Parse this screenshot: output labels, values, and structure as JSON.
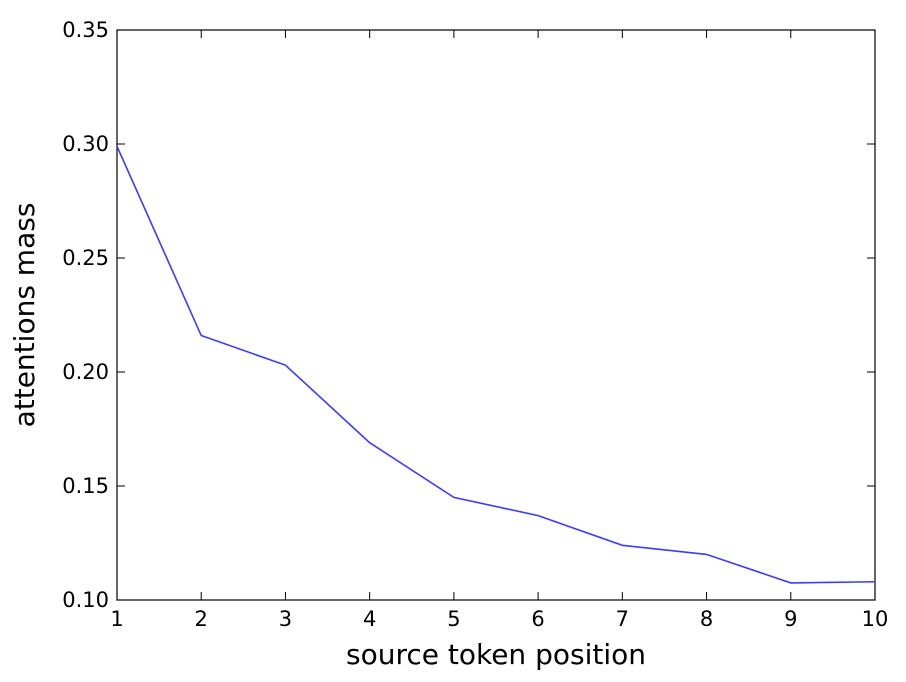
{
  "chart_data": {
    "type": "line",
    "x": [
      1,
      2,
      3,
      4,
      5,
      6,
      7,
      8,
      9,
      10
    ],
    "series": [
      {
        "color": "#3b3bff",
        "values": [
          0.299,
          0.216,
          0.203,
          0.169,
          0.145,
          0.137,
          0.124,
          0.12,
          0.1075,
          0.108
        ]
      }
    ],
    "xlabel": "source token position",
    "ylabel": "attentions mass",
    "xlim": [
      1,
      10
    ],
    "xticks": [
      1,
      2,
      3,
      4,
      5,
      6,
      7,
      8,
      9,
      10
    ],
    "ylim": [
      0.1,
      0.35
    ],
    "yticks": [
      {
        "value": 0.1,
        "label": "0.10"
      },
      {
        "value": 0.15,
        "label": "0.15"
      },
      {
        "value": 0.2,
        "label": "0.20"
      },
      {
        "value": 0.25,
        "label": "0.25"
      },
      {
        "value": 0.3,
        "label": "0.30"
      },
      {
        "value": 0.35,
        "label": "0.35"
      }
    ]
  }
}
